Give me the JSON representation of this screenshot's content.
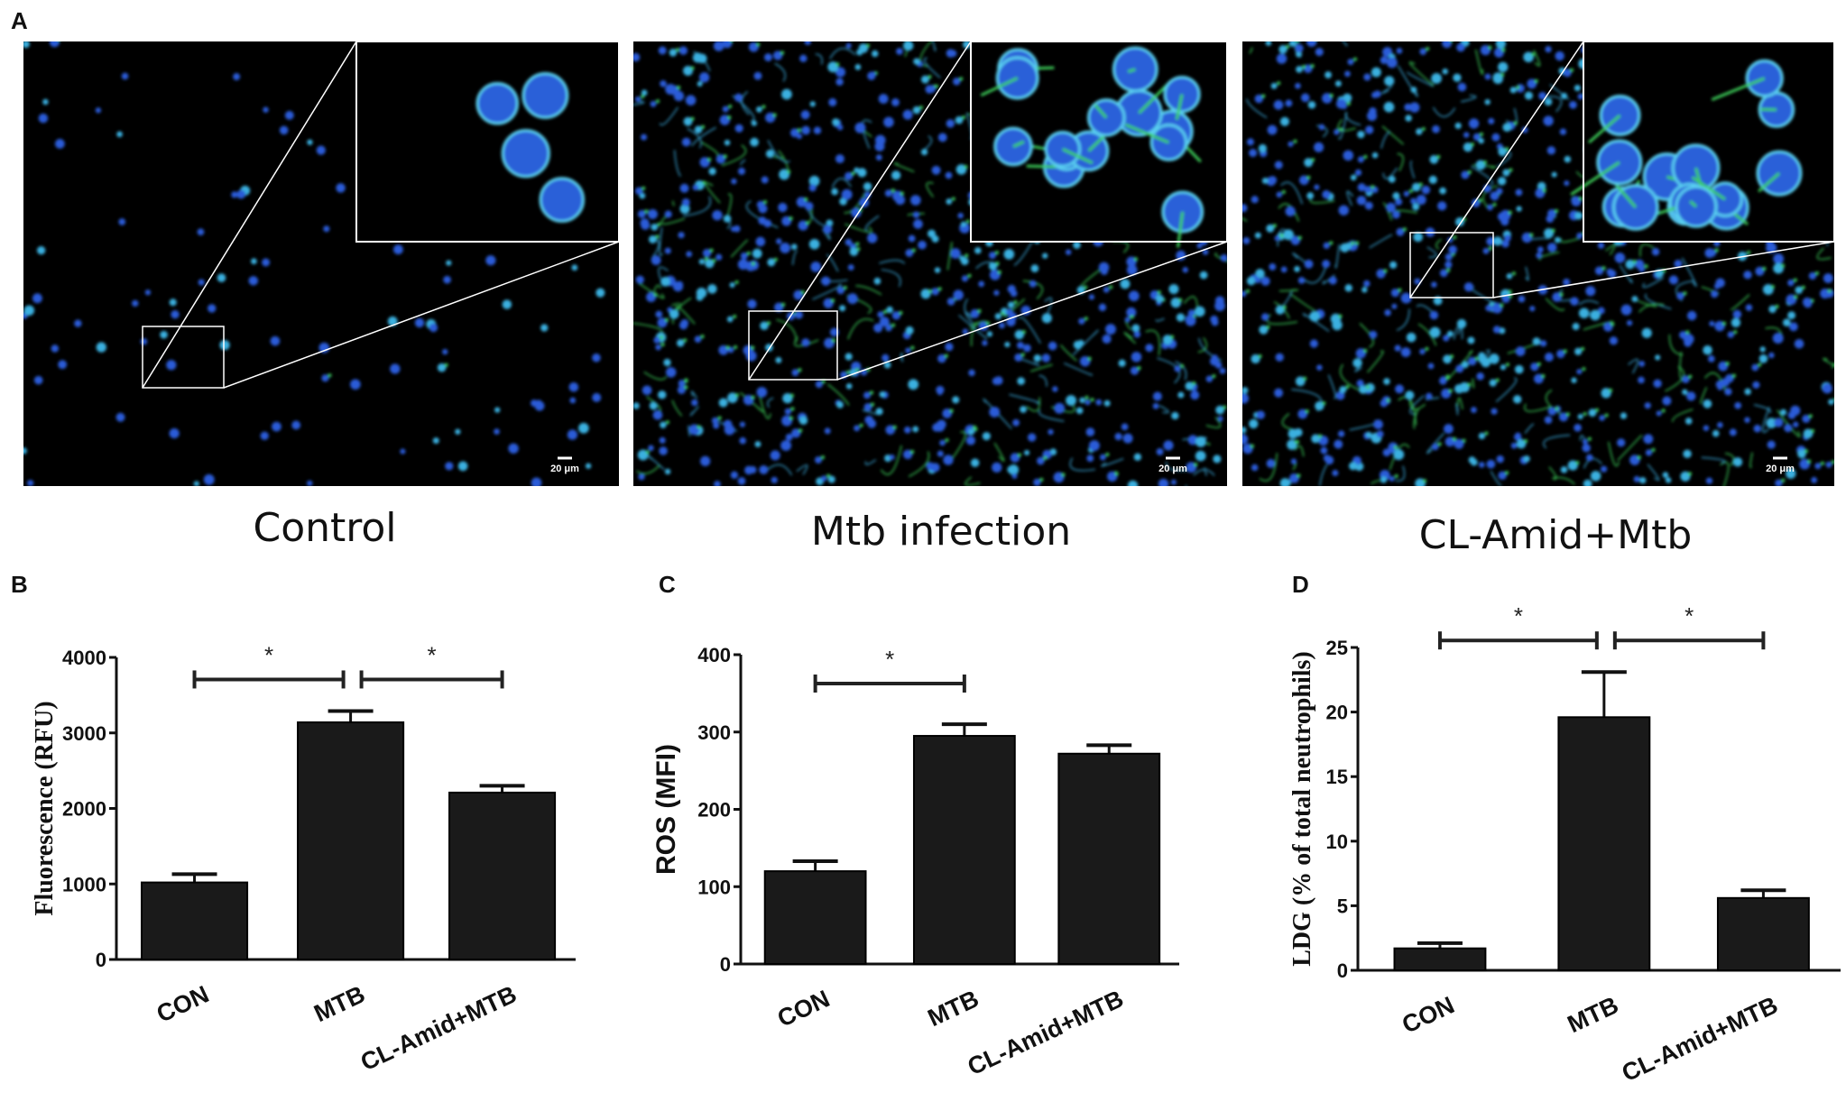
{
  "panel_a": {
    "label": "A",
    "images": [
      {
        "caption": "Control",
        "scale_bar": "20 μm",
        "density": "sparse"
      },
      {
        "caption": "Mtb infection",
        "scale_bar": "20 μm",
        "density": "dense"
      },
      {
        "caption": "CL-Amid+Mtb",
        "scale_bar": "20 μm",
        "density": "dense"
      }
    ],
    "colors": {
      "nucleus": "#2a5bd8",
      "net": "#3ccf5a",
      "background": "#000000",
      "inset_border": "#ffffff"
    }
  },
  "chart_data": [
    {
      "panel_label": "B",
      "type": "bar",
      "categories": [
        "CON",
        "MTB",
        "CL-Amid+MTB"
      ],
      "values": [
        1020,
        3140,
        2210
      ],
      "errors": [
        110,
        150,
        90
      ],
      "ylabel": "Fluorescence (RFU)",
      "ylim": [
        0,
        4000
      ],
      "yticks": [
        "0",
        "1000",
        "2000",
        "3000",
        "4000"
      ],
      "significance": [
        {
          "from": 0,
          "to": 1,
          "label": "*"
        },
        {
          "from": 1,
          "to": 2,
          "label": "*"
        }
      ],
      "grid": false,
      "bar_color": "#1a1a1a"
    },
    {
      "panel_label": "C",
      "type": "bar",
      "categories": [
        "CON",
        "MTB",
        "CL-Amid+MTB"
      ],
      "values": [
        120,
        295,
        272
      ],
      "errors": [
        13,
        15,
        11
      ],
      "ylabel": "ROS (MFI)",
      "ylim": [
        0,
        400
      ],
      "yticks": [
        "0",
        "100",
        "200",
        "300",
        "400"
      ],
      "significance": [
        {
          "from": 0,
          "to": 1,
          "label": "*"
        }
      ],
      "grid": false,
      "bar_color": "#1a1a1a"
    },
    {
      "panel_label": "D",
      "type": "bar",
      "categories": [
        "CON",
        "MTB",
        "CL-Amid+MTB"
      ],
      "values": [
        1.7,
        19.6,
        5.6
      ],
      "errors": [
        0.4,
        3.5,
        0.6
      ],
      "ylabel": "LDG (% of total neutrophils)",
      "ylim": [
        0,
        25
      ],
      "yticks": [
        "0",
        "5",
        "10",
        "15",
        "20",
        "25"
      ],
      "significance": [
        {
          "from": 0,
          "to": 1,
          "label": "*"
        },
        {
          "from": 1,
          "to": 2,
          "label": "*"
        }
      ],
      "grid": false,
      "bar_color": "#1a1a1a"
    }
  ]
}
